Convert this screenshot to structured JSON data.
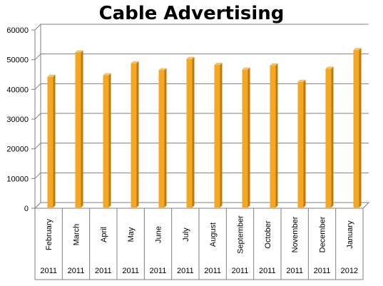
{
  "chart_data": {
    "type": "bar",
    "title": "Cable Advertising",
    "xlabel": "",
    "ylabel": "",
    "ylim": [
      0,
      60000
    ],
    "yticks": [
      "0",
      "10000",
      "20000",
      "30000",
      "40000",
      "50000",
      "60000"
    ],
    "grid": true,
    "categories": [
      {
        "month": "February",
        "year": "2011"
      },
      {
        "month": "March",
        "year": "2011"
      },
      {
        "month": "April",
        "year": "2011"
      },
      {
        "month": "May",
        "year": "2011"
      },
      {
        "month": "June",
        "year": "2011"
      },
      {
        "month": "July",
        "year": "2011"
      },
      {
        "month": "August",
        "year": "2011"
      },
      {
        "month": "September",
        "year": "2011"
      },
      {
        "month": "October",
        "year": "2011"
      },
      {
        "month": "November",
        "year": "2011"
      },
      {
        "month": "December",
        "year": "2011"
      },
      {
        "month": "January",
        "year": "2012"
      }
    ],
    "values": [
      44000,
      52200,
      44500,
      48500,
      46200,
      50000,
      48000,
      46400,
      47800,
      42300,
      46700,
      53000
    ],
    "bar_color": "#F5A623"
  }
}
